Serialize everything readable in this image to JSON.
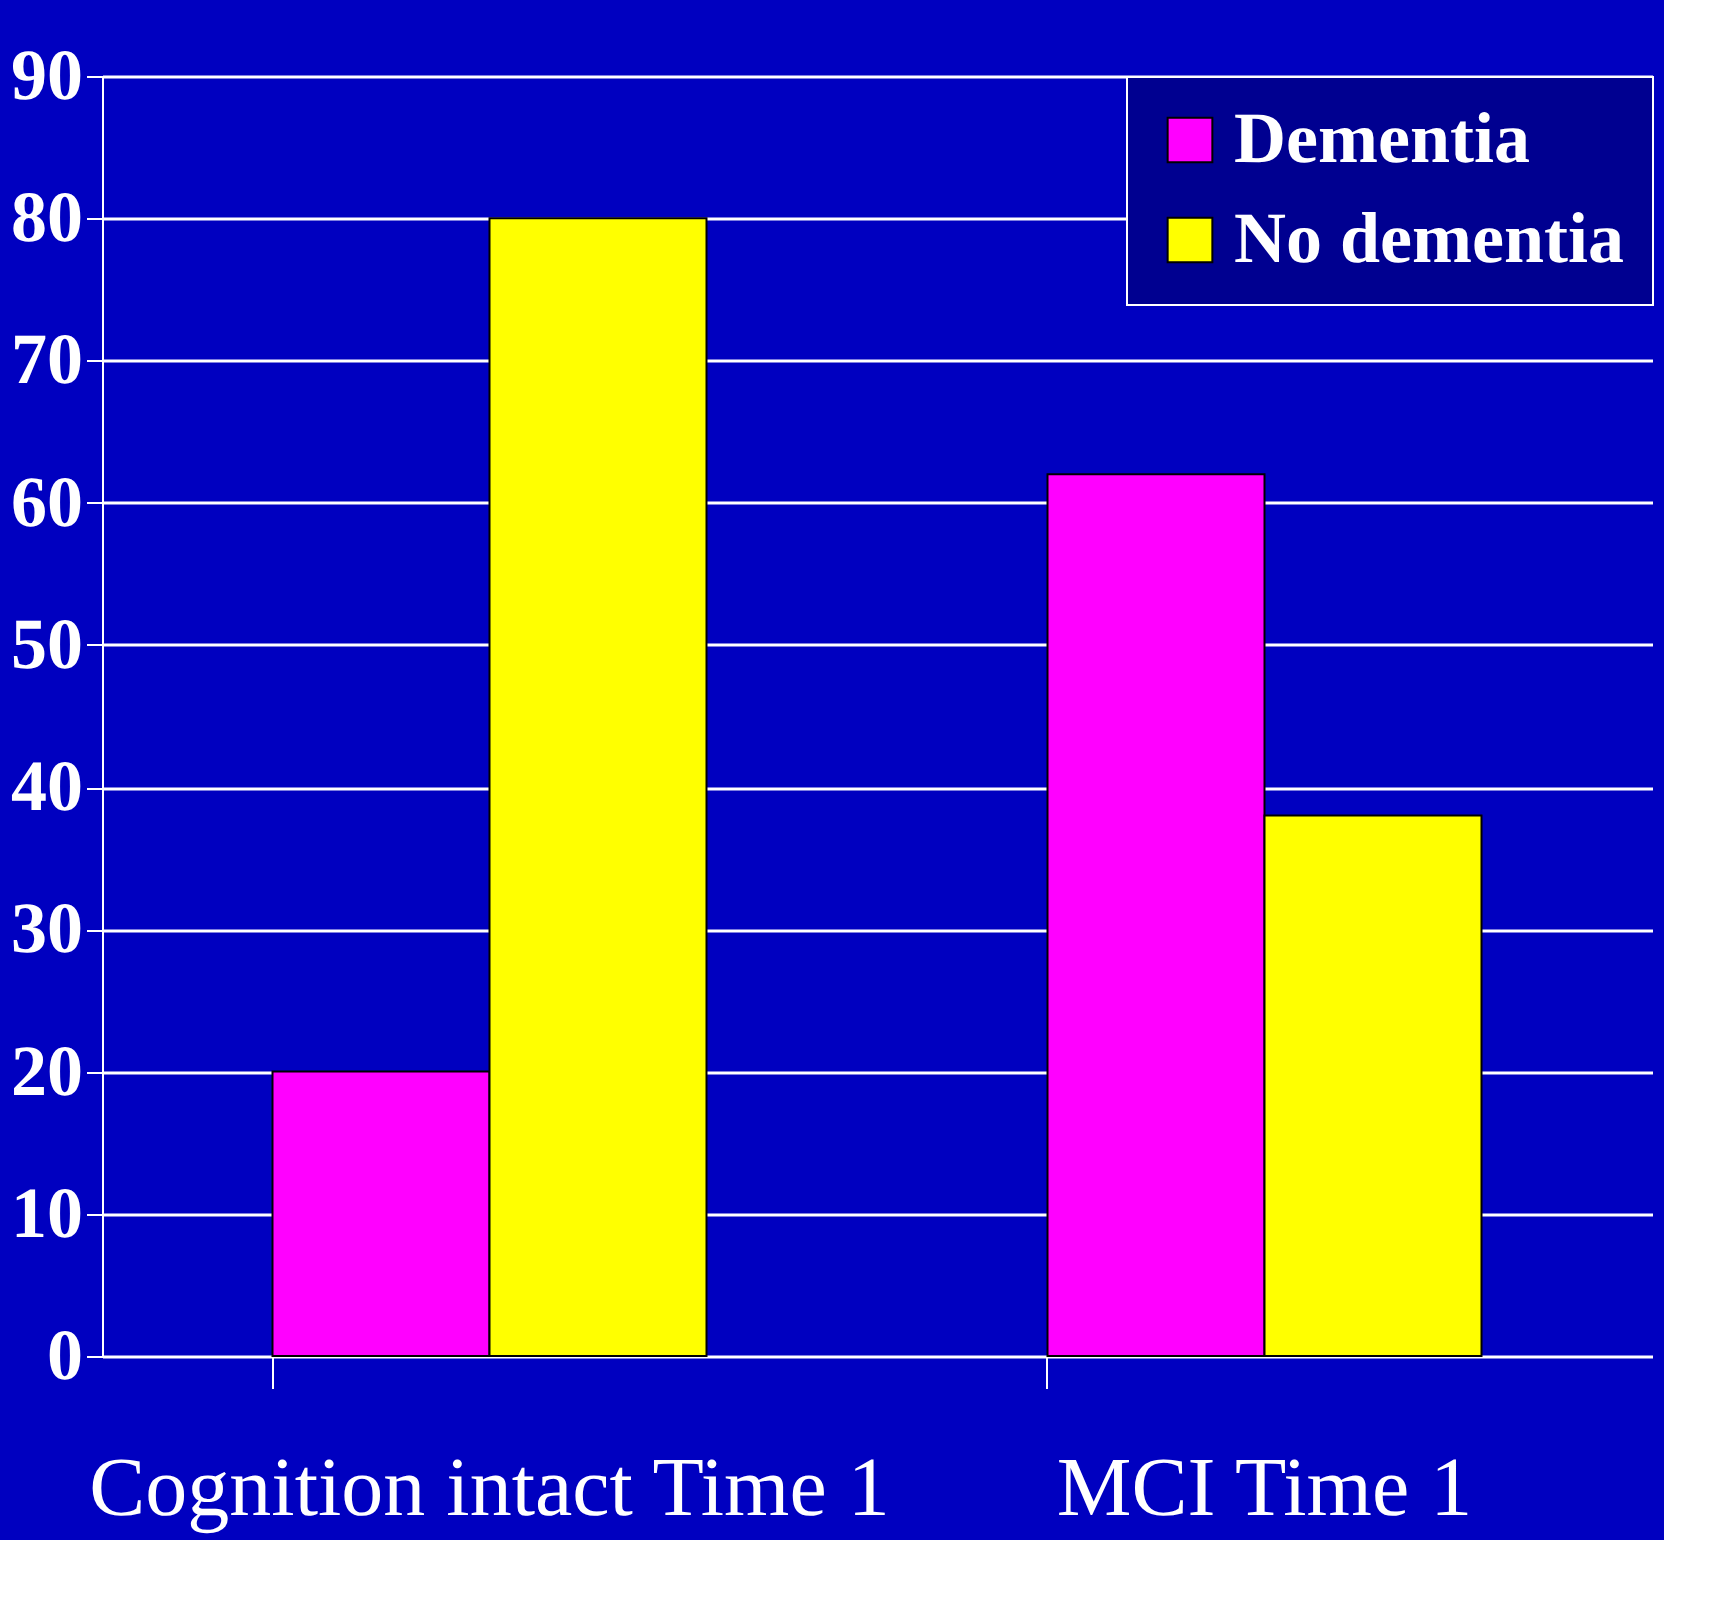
{
  "chart_data": {
    "type": "bar",
    "categories": [
      "Cognition intact Time 1",
      "MCI Time 1"
    ],
    "series": [
      {
        "name": "Dementia",
        "color": "#ff00ff",
        "values": [
          20,
          62
        ]
      },
      {
        "name": "No dementia",
        "color": "#ffff00",
        "values": [
          80,
          38
        ]
      }
    ],
    "ylim": [
      0,
      90
    ],
    "yticks": [
      0,
      10,
      20,
      30,
      40,
      50,
      60,
      70,
      80,
      90
    ],
    "grid": "y",
    "legend": "top right"
  }
}
